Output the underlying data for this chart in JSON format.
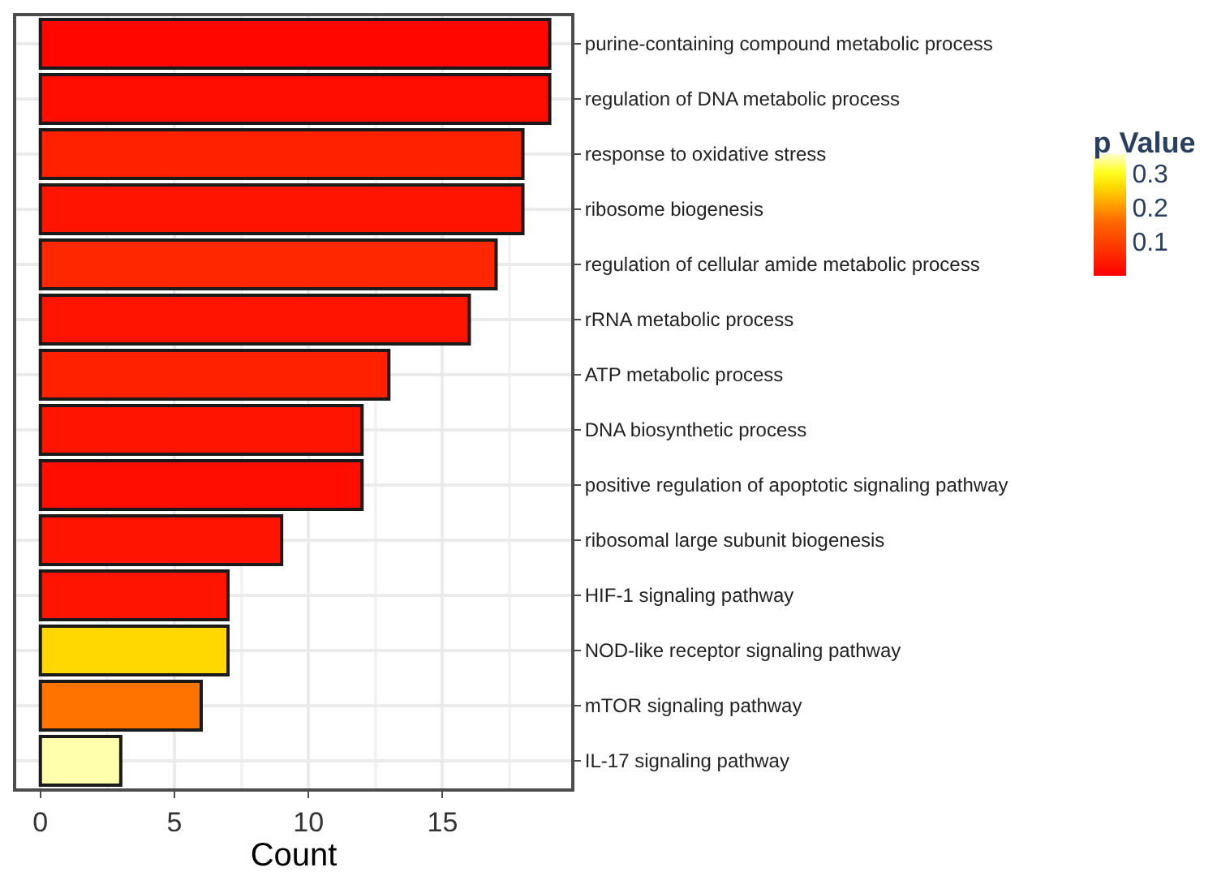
{
  "chart_data": {
    "type": "bar",
    "orientation": "horizontal",
    "xlabel": "Count",
    "clabel": "p Value",
    "categories": [
      "purine-containing compound metabolic process",
      "regulation of DNA metabolic process",
      "response to oxidative stress",
      "ribosome biogenesis",
      "regulation of cellular amide metabolic process",
      "rRNA metabolic process",
      "ATP metabolic process",
      "DNA biosynthetic process",
      "positive regulation of apoptotic signaling pathway",
      "ribosomal large subunit biogenesis",
      "HIF-1 signaling pathway",
      "NOD-like receptor signaling pathway",
      "mTOR signaling pathway",
      "IL-17 signaling pathway"
    ],
    "values": [
      19,
      19,
      18,
      18,
      17,
      16,
      13,
      12,
      12,
      9,
      7,
      7,
      6,
      3
    ],
    "cvalues": [
      0.01,
      0.02,
      0.05,
      0.03,
      0.06,
      0.03,
      0.05,
      0.03,
      0.02,
      0.03,
      0.03,
      0.26,
      0.17,
      0.35
    ],
    "clim": [
      0,
      0.36
    ],
    "cticks": [
      0.1,
      0.2,
      0.3
    ],
    "xlim": [
      -0.9,
      19.8
    ],
    "xticks": [
      0,
      5,
      10,
      15
    ],
    "grid": true
  }
}
